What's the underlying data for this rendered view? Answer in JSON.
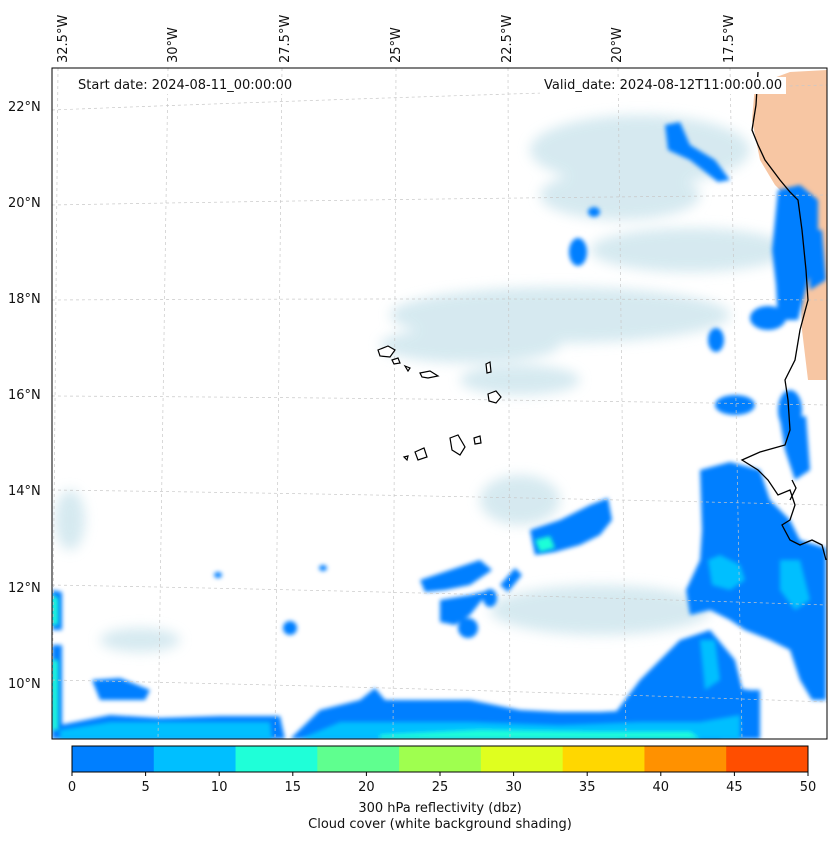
{
  "header": {
    "start_date": "Start date: 2024-08-11_00:00:00",
    "valid_date": "Valid_date: 2024-08-12T11:00:00.00"
  },
  "axes": {
    "lon_ticks": [
      "32.5°W",
      "30°W",
      "27.5°W",
      "25°W",
      "22.5°W",
      "20°W",
      "17.5°W"
    ],
    "lat_ticks": [
      "22°N",
      "20°N",
      "18°N",
      "16°N",
      "14°N",
      "12°N",
      "10°N"
    ]
  },
  "colorbar": {
    "ticks": [
      "0",
      "5",
      "10",
      "15",
      "20",
      "25",
      "30",
      "35",
      "40",
      "45",
      "50"
    ],
    "colors": [
      "#007fff",
      "#00bfff",
      "#1fffd8",
      "#5fff8f",
      "#9fff4f",
      "#dfff1f",
      "#ffd700",
      "#ff9100",
      "#ff4e00"
    ],
    "label_line1": "300 hPa reflectivity (dbz)",
    "label_line2": "Cloud cover (white background shading)"
  },
  "palette": {
    "cloud": "#cfe6ee",
    "land": "#f7c6a3",
    "coast": "#000000",
    "grid": "#c8c8c8"
  }
}
